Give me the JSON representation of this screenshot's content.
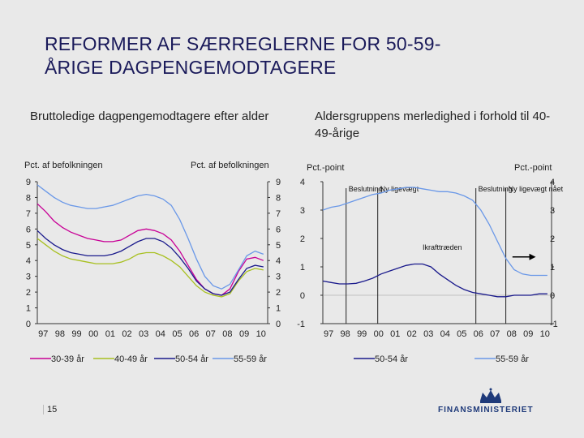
{
  "slide": {
    "title_line1": "REFORMER AF SÆRREGLERNE FOR 50-59-",
    "title_line2": "ÅRIGE DAGPENGEMODTAGERE",
    "page_number": "15",
    "logo_text": "FINANSMINISTERIET"
  },
  "colors": {
    "s30_39": "#c80096",
    "s40_49": "#a8c020",
    "s50_54": "#1a1a8c",
    "s55_59": "#6a98e8",
    "background": "#e9e9e9"
  },
  "chart_data": [
    {
      "type": "line",
      "title": "Bruttoledige dagpengemodtagere efter alder",
      "ylabel_left": "Pct. af befolkningen",
      "ylabel_right": "Pct. af befolkningen",
      "ylim": [
        0,
        9
      ],
      "yticks": [
        "0",
        "1",
        "2",
        "3",
        "4",
        "5",
        "6",
        "7",
        "8",
        "9"
      ],
      "xlim": [
        1997,
        2010.75
      ],
      "xticks": [
        "97",
        "98",
        "99",
        "00",
        "01",
        "02",
        "03",
        "04",
        "05",
        "06",
        "07",
        "08",
        "09",
        "10"
      ],
      "legend_position": "bottom",
      "series": [
        {
          "name": "30-39 år",
          "color_key": "s30_39",
          "x": [
            1997,
            1997.5,
            1998,
            1998.5,
            1999,
            1999.5,
            2000,
            2000.5,
            2001,
            2001.5,
            2002,
            2002.5,
            2003,
            2003.5,
            2004,
            2004.5,
            2005,
            2005.5,
            2006,
            2006.5,
            2007,
            2007.5,
            2008,
            2008.5,
            2009,
            2009.5,
            2010,
            2010.5
          ],
          "y": [
            7.6,
            7.1,
            6.5,
            6.1,
            5.8,
            5.6,
            5.4,
            5.3,
            5.2,
            5.2,
            5.3,
            5.6,
            5.9,
            6.0,
            5.9,
            5.7,
            5.3,
            4.6,
            3.7,
            2.8,
            2.2,
            1.9,
            1.8,
            2.2,
            3.3,
            4.1,
            4.2,
            4.0
          ]
        },
        {
          "name": "40-49 år",
          "color_key": "s40_49",
          "x": [
            1997,
            1997.5,
            1998,
            1998.5,
            1999,
            1999.5,
            2000,
            2000.5,
            2001,
            2001.5,
            2002,
            2002.5,
            2003,
            2003.5,
            2004,
            2004.5,
            2005,
            2005.5,
            2006,
            2006.5,
            2007,
            2007.5,
            2008,
            2008.5,
            2009,
            2009.5,
            2010,
            2010.5
          ],
          "y": [
            5.4,
            5.0,
            4.6,
            4.3,
            4.1,
            4.0,
            3.9,
            3.8,
            3.8,
            3.8,
            3.9,
            4.1,
            4.4,
            4.5,
            4.5,
            4.3,
            4.0,
            3.6,
            3.0,
            2.4,
            2.0,
            1.8,
            1.7,
            1.9,
            2.7,
            3.3,
            3.5,
            3.4
          ]
        },
        {
          "name": "50-54 år",
          "color_key": "s50_54",
          "x": [
            1997,
            1997.5,
            1998,
            1998.5,
            1999,
            1999.5,
            2000,
            2000.5,
            2001,
            2001.5,
            2002,
            2002.5,
            2003,
            2003.5,
            2004,
            2004.5,
            2005,
            2005.5,
            2006,
            2006.5,
            2007,
            2007.5,
            2008,
            2008.5,
            2009,
            2009.5,
            2010,
            2010.5
          ],
          "y": [
            5.9,
            5.4,
            5.0,
            4.7,
            4.5,
            4.4,
            4.3,
            4.3,
            4.3,
            4.4,
            4.6,
            4.9,
            5.2,
            5.4,
            5.4,
            5.2,
            4.8,
            4.2,
            3.5,
            2.7,
            2.2,
            1.9,
            1.8,
            2.0,
            2.8,
            3.5,
            3.7,
            3.6
          ]
        },
        {
          "name": "55-59 år",
          "color_key": "s55_59",
          "x": [
            1997,
            1997.5,
            1998,
            1998.5,
            1999,
            1999.5,
            2000,
            2000.5,
            2001,
            2001.5,
            2002,
            2002.5,
            2003,
            2003.5,
            2004,
            2004.5,
            2005,
            2005.5,
            2006,
            2006.5,
            2007,
            2007.5,
            2008,
            2008.5,
            2009,
            2009.5,
            2010,
            2010.5
          ],
          "y": [
            8.8,
            8.4,
            8.0,
            7.7,
            7.5,
            7.4,
            7.3,
            7.3,
            7.4,
            7.5,
            7.7,
            7.9,
            8.1,
            8.2,
            8.1,
            7.9,
            7.5,
            6.6,
            5.4,
            4.1,
            3.0,
            2.4,
            2.2,
            2.5,
            3.4,
            4.3,
            4.6,
            4.4
          ]
        }
      ]
    },
    {
      "type": "line",
      "title": "Aldersgruppens merledighed i forhold til 40-49-årige",
      "ylabel_left": "Pct.-point",
      "ylabel_right": "Pct.-point",
      "ylim": [
        -1,
        4
      ],
      "yticks": [
        "-1",
        "0",
        "1",
        "2",
        "3",
        "4"
      ],
      "xlim": [
        1997,
        2010.75
      ],
      "xticks": [
        "97",
        "98",
        "99",
        "00",
        "01",
        "02",
        "03",
        "04",
        "05",
        "06",
        "07",
        "08",
        "09",
        "10"
      ],
      "legend_position": "bottom",
      "annotations": [
        {
          "text": "Beslutning",
          "x": 1998.4
        },
        {
          "text": "Ny ligevægt",
          "x": 2000.3
        },
        {
          "text": "Beslutning",
          "x": 2006.2
        },
        {
          "text": "Ny ligevægt nået",
          "x": 2008.0
        },
        {
          "text": "Ikrafttræden",
          "x": 2003.0
        }
      ],
      "vertical_lines_x": [
        1998.4,
        2000.3,
        2006.2,
        2008.0
      ],
      "arrow_from_x": 2008.4,
      "arrow_to_x": 2009.8,
      "arrow_y": 1.35,
      "series": [
        {
          "name": "50-54 år",
          "color_key": "s50_54",
          "x": [
            1997,
            1997.5,
            1998,
            1998.5,
            1999,
            1999.5,
            2000,
            2000.5,
            2001,
            2001.5,
            2002,
            2002.5,
            2003,
            2003.5,
            2004,
            2004.5,
            2005,
            2005.5,
            2006,
            2006.5,
            2007,
            2007.5,
            2008,
            2008.5,
            2009,
            2009.5,
            2010,
            2010.5
          ],
          "y": [
            0.5,
            0.45,
            0.4,
            0.4,
            0.42,
            0.5,
            0.6,
            0.75,
            0.85,
            0.95,
            1.05,
            1.1,
            1.1,
            1.0,
            0.75,
            0.55,
            0.35,
            0.2,
            0.1,
            0.05,
            0.0,
            -0.05,
            -0.05,
            0.0,
            0.0,
            0.0,
            0.05,
            0.05
          ]
        },
        {
          "name": "55-59 år",
          "color_key": "s55_59",
          "x": [
            1997,
            1997.5,
            1998,
            1998.5,
            1999,
            1999.5,
            2000,
            2000.5,
            2001,
            2001.5,
            2002,
            2002.5,
            2003,
            2003.5,
            2004,
            2004.5,
            2005,
            2005.5,
            2006,
            2006.5,
            2007,
            2007.5,
            2008,
            2008.5,
            2009,
            2009.5,
            2010,
            2010.5
          ],
          "y": [
            3.0,
            3.1,
            3.15,
            3.25,
            3.35,
            3.45,
            3.55,
            3.6,
            3.7,
            3.75,
            3.8,
            3.8,
            3.75,
            3.7,
            3.65,
            3.65,
            3.6,
            3.5,
            3.35,
            3.0,
            2.5,
            1.9,
            1.3,
            0.9,
            0.75,
            0.7,
            0.7,
            0.7
          ]
        }
      ]
    }
  ]
}
